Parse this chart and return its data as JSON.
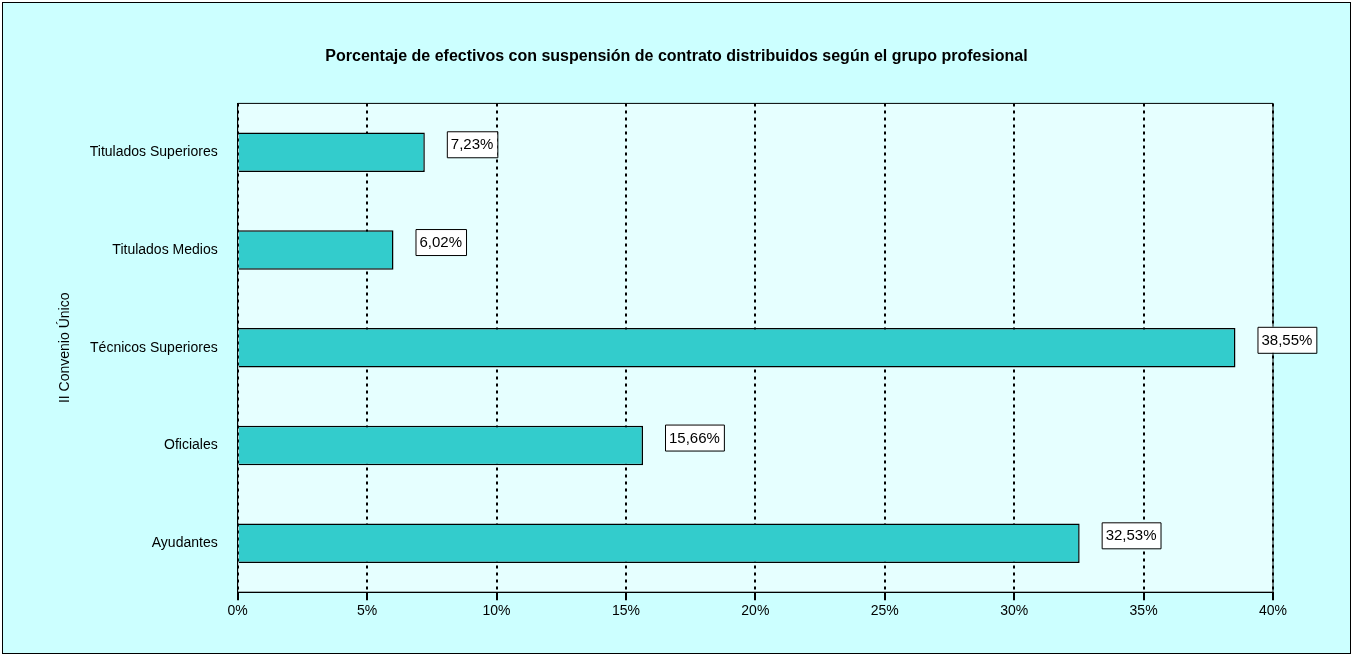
{
  "chart_data": {
    "type": "bar",
    "orientation": "horizontal",
    "title": "Porcentaje de efectivos con suspensión de contrato distribuidos según el grupo profesional",
    "ylabel": "II Convenio Único",
    "categories": [
      "Titulados Superiores",
      "Titulados Medios",
      "Técnicos Superiores",
      "Oficiales",
      "Ayudantes"
    ],
    "values": [
      7.23,
      6.02,
      38.55,
      15.66,
      32.53
    ],
    "value_labels": [
      "7,23%",
      "6,02%",
      "38,55%",
      "15,66%",
      "32,53%"
    ],
    "color": "#33cccc",
    "xlim": [
      0,
      40
    ],
    "xticks": [
      {
        "value": 0,
        "label": "0%"
      },
      {
        "value": 5,
        "label": "5%"
      },
      {
        "value": 10,
        "label": "10%"
      },
      {
        "value": 15,
        "label": "15%"
      },
      {
        "value": 20,
        "label": "20%"
      },
      {
        "value": 25,
        "label": "25%"
      },
      {
        "value": 30,
        "label": "30%"
      },
      {
        "value": 35,
        "label": "35%"
      },
      {
        "value": 40,
        "label": "40%"
      }
    ],
    "grid": "x",
    "legend": false
  }
}
